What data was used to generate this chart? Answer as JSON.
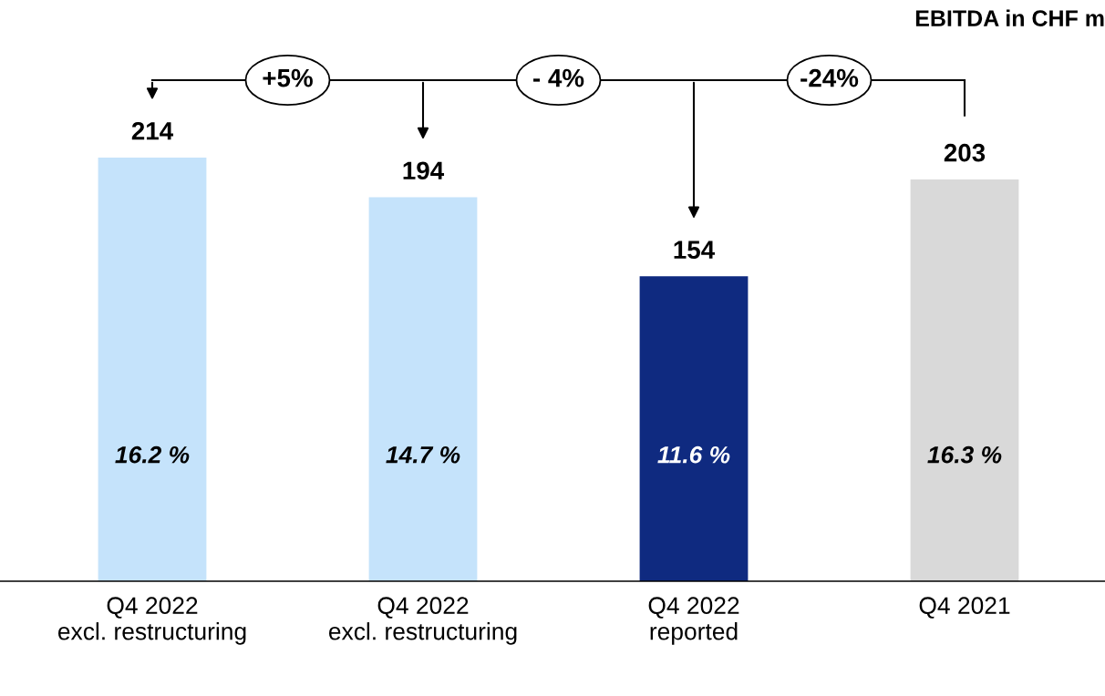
{
  "chart_data": {
    "type": "bar",
    "title": "EBITDA in CHF m",
    "categories": [
      "Q4 2022\nexcl. restructuring",
      "Q4 2022\nexcl. restructuring",
      "Q4 2022\nreported",
      "Q4 2021"
    ],
    "values": [
      214,
      194,
      154,
      203
    ],
    "colors": [
      "#c5e3fb",
      "#c5e3fb",
      "#0f2a80",
      "#d9d9d9"
    ],
    "data_labels": true,
    "annotations": [
      "16.2 %",
      "14.7 %",
      "11.6 %",
      "16.3 %",
      "+5%",
      "- 4%",
      "-24%"
    ],
    "grid": false
  }
}
